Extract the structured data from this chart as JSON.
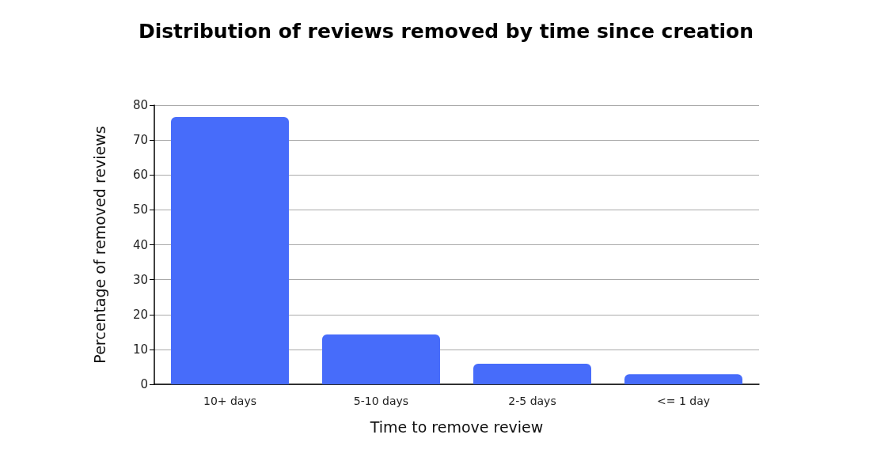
{
  "chart_data": {
    "type": "bar",
    "title": "Distribution of reviews removed by time since creation",
    "xlabel": "Time to remove review",
    "ylabel": "Percentage of removed reviews",
    "categories": [
      "10+ days",
      "5-10 days",
      "2-5 days",
      "<= 1 day"
    ],
    "values": [
      76.6,
      14.3,
      5.9,
      2.9
    ],
    "color": "#476cfa",
    "ylim": [
      0,
      80
    ],
    "yticks": [
      0,
      10,
      20,
      30,
      40,
      50,
      60,
      70,
      80
    ],
    "grid": "y"
  }
}
